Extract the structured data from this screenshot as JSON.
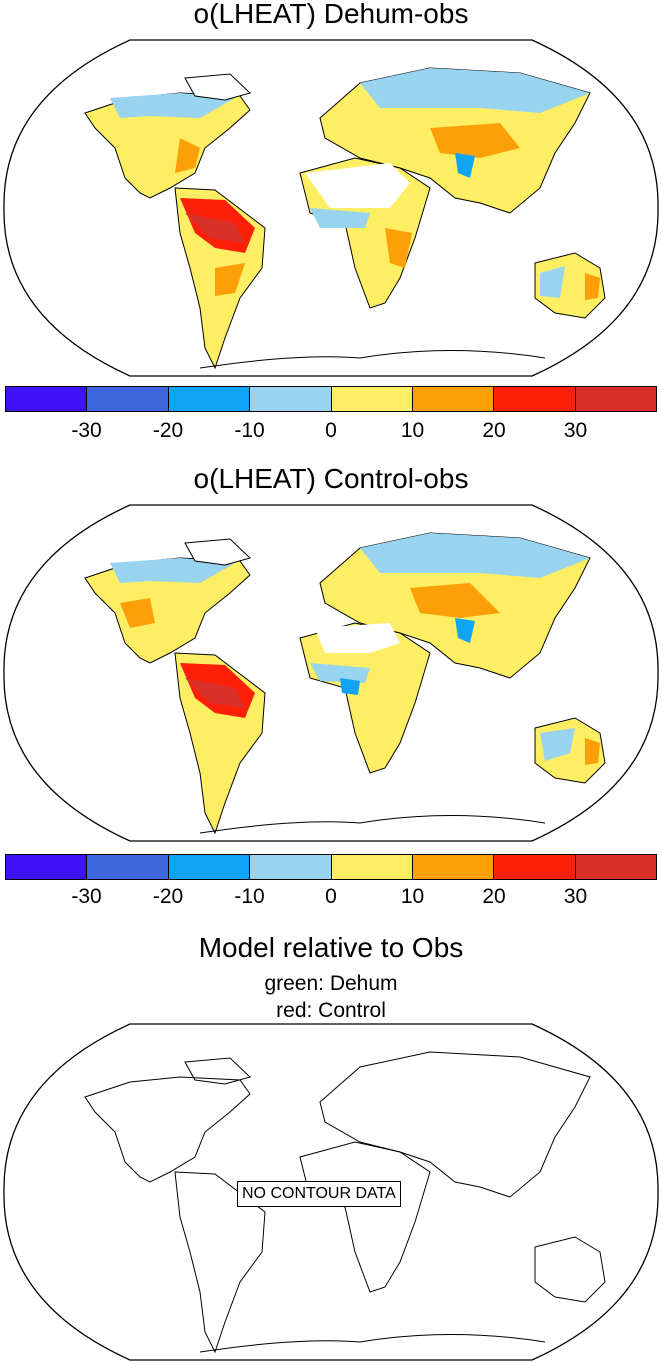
{
  "panels": [
    {
      "title": "o(LHEAT) Dehum-obs"
    },
    {
      "title": "o(LHEAT) Control-obs"
    },
    {
      "title": "Model relative to Obs",
      "subtitle_1": "green: Dehum",
      "subtitle_2": "red: Control",
      "message": "NO CONTOUR DATA"
    }
  ],
  "colorbar": {
    "colors": [
      "#3d12f5",
      "#3f67dd",
      "#0fa4f4",
      "#98d3ef",
      "#fdee63",
      "#fd9f09",
      "#fd2008",
      "#d9302a"
    ],
    "tick_labels": [
      "-30",
      "-20",
      "-10",
      "0",
      "10",
      "20",
      "30"
    ],
    "levels": [
      -30,
      -20,
      -10,
      0,
      10,
      20,
      30
    ]
  },
  "legend_colors": {
    "dehum": "green",
    "control": "red"
  }
}
